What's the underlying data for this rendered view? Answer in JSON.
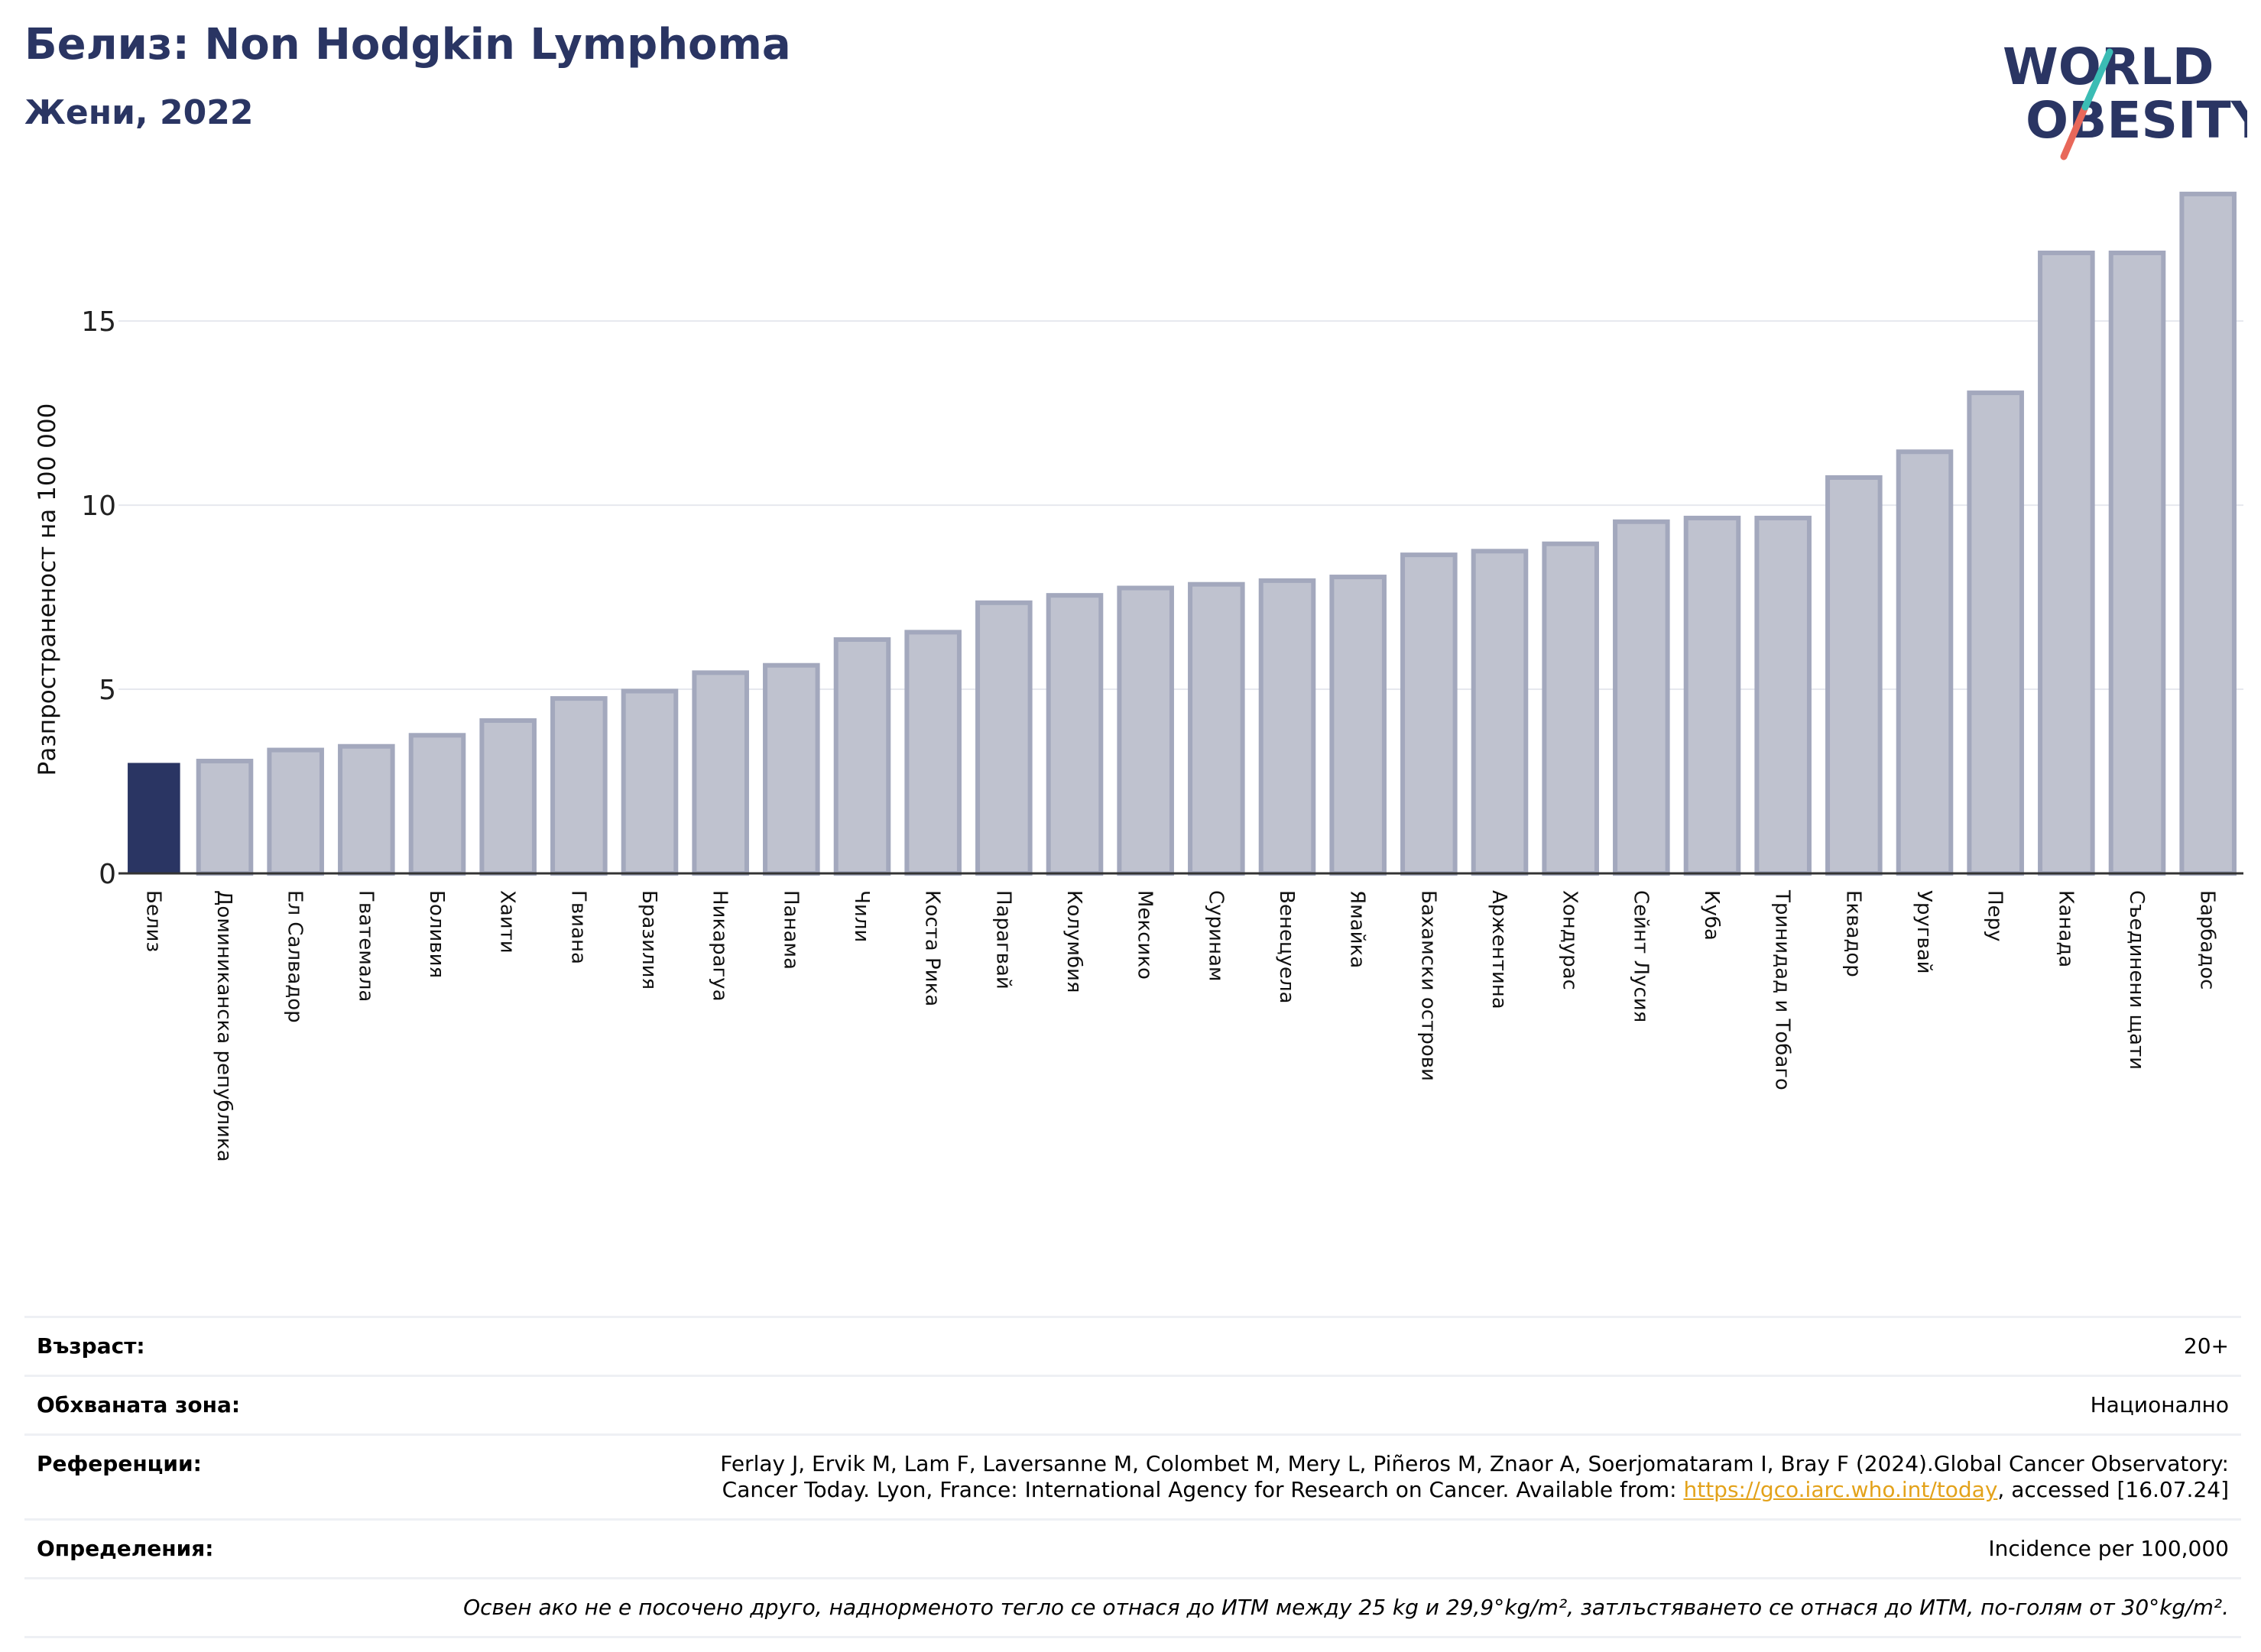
{
  "header": {
    "title": "Белиз: Non Hodgkin Lymphoma",
    "subtitle": "Жени, 2022"
  },
  "logo": {
    "line1": "WORLD",
    "line2": "OBESITY"
  },
  "chart_data": {
    "type": "bar",
    "ylabel": "Разпространеност  на 100 000",
    "ylim": [
      0,
      18.8
    ],
    "yticks": [
      0,
      5,
      10,
      15
    ],
    "grid": true,
    "highlight_color": "#2a3563",
    "bar_color": "#bfc2cf",
    "bar_edge_color": "#a3a8bd",
    "categories": [
      "Белиз",
      "Доминиканска република",
      "Ел Салвадор",
      "Гватемала",
      "Боливия",
      "Хаити",
      "Гвиана",
      "Бразилия",
      "Никарагуа",
      "Панама",
      "Чили",
      "Коста Рика",
      "Парагвай",
      "Колумбия",
      "Мексико",
      "Суринам",
      "Венецуела",
      "Ямайка",
      "Бахамски острови",
      "Аржентина",
      "Хондурас",
      "Сейнт Лусия",
      "Куба",
      "Тринидад и Тобаго",
      "Еквадор",
      "Уругвай",
      "Перу",
      "Канада",
      "Съединени щати",
      "Барбадос"
    ],
    "values": [
      3.0,
      3.05,
      3.35,
      3.45,
      3.75,
      4.15,
      4.75,
      4.95,
      5.45,
      5.65,
      6.35,
      6.55,
      7.35,
      7.55,
      7.75,
      7.85,
      7.95,
      8.05,
      8.65,
      8.75,
      8.95,
      9.55,
      9.65,
      9.65,
      10.75,
      11.45,
      13.05,
      16.85,
      16.85,
      18.45
    ],
    "highlight_index": 0
  },
  "info": {
    "age_label": "Възраст:",
    "age_value": "20+",
    "area_label": "Обхваната зона:",
    "area_value": "Национално",
    "refs_label": "Референции:",
    "refs_line1": "Ferlay J, Ervik M, Lam F, Laversanne M, Colombet M, Mery L, Piñeros M, Znaor A, Soerjomataram I, Bray F (2024).Global Cancer Observatory:",
    "refs_line2_pre": "Cancer Today. Lyon, France: International Agency for Research on Cancer. Available from: ",
    "refs_link": "https://gco.iarc.who.int/today",
    "refs_line2_post": ", accessed [16.07.24]",
    "defs_label": "Определения:",
    "defs_value": "Incidence per 100,000",
    "note": "Освен ако не е посочено друго, наднорменото тегло се отнася до ИТМ между 25 kg и 29,9°kg/m², затлъстяването се отнася до ИТМ, по-голям от 30°kg/m²."
  }
}
